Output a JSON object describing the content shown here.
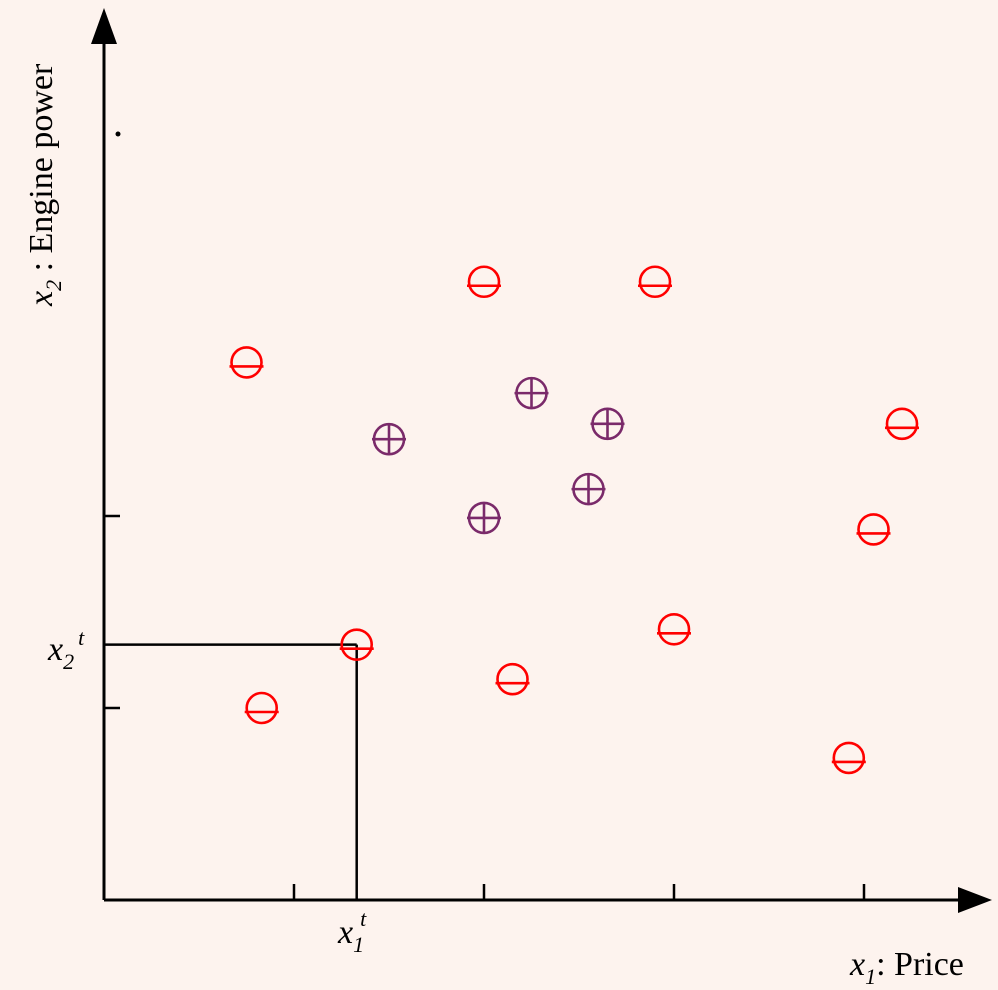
{
  "diagram": {
    "x_axis_title": {
      "var": "x",
      "sub": "1",
      "text": ": Price"
    },
    "y_axis_title": {
      "var": "x",
      "sub": "2",
      "text": " : Engine power"
    },
    "threshold_x": {
      "var": "x",
      "sub": "1",
      "sup": "t"
    },
    "threshold_y": {
      "var": "x",
      "sub": "2",
      "sup": "t"
    },
    "colors": {
      "negative": "#ff0000",
      "positive": "#7a2a6a",
      "axis": "#000000",
      "background": "#fdf3ee"
    },
    "x_ticks": [
      1,
      2,
      3,
      4
    ],
    "y_ticks": [
      1,
      2
    ],
    "threshold_value": {
      "x1": 1.33,
      "x2": 1.33
    },
    "negative_points": [
      {
        "x1": 0.75,
        "x2": 2.8,
        "symbol": "minus-circle"
      },
      {
        "x1": 2.0,
        "x2": 3.22,
        "symbol": "minus-circle"
      },
      {
        "x1": 2.9,
        "x2": 3.22,
        "symbol": "minus-circle"
      },
      {
        "x1": 4.2,
        "x2": 2.48,
        "symbol": "minus-circle"
      },
      {
        "x1": 4.05,
        "x2": 1.93,
        "symbol": "minus-circle"
      },
      {
        "x1": 1.33,
        "x2": 1.33,
        "symbol": "minus-circle"
      },
      {
        "x1": 0.83,
        "x2": 1.0,
        "symbol": "minus-circle"
      },
      {
        "x1": 2.15,
        "x2": 1.15,
        "symbol": "minus-circle"
      },
      {
        "x1": 3.0,
        "x2": 1.41,
        "symbol": "minus-circle"
      },
      {
        "x1": 3.92,
        "x2": 0.74,
        "symbol": "minus-circle"
      }
    ],
    "positive_points": [
      {
        "x1": 1.5,
        "x2": 2.4,
        "symbol": "plus-circle"
      },
      {
        "x1": 2.25,
        "x2": 2.64,
        "symbol": "plus-circle"
      },
      {
        "x1": 2.65,
        "x2": 2.48,
        "symbol": "plus-circle"
      },
      {
        "x1": 2.55,
        "x2": 2.14,
        "symbol": "plus-circle"
      },
      {
        "x1": 2.0,
        "x2": 1.99,
        "symbol": "plus-circle"
      }
    ]
  }
}
